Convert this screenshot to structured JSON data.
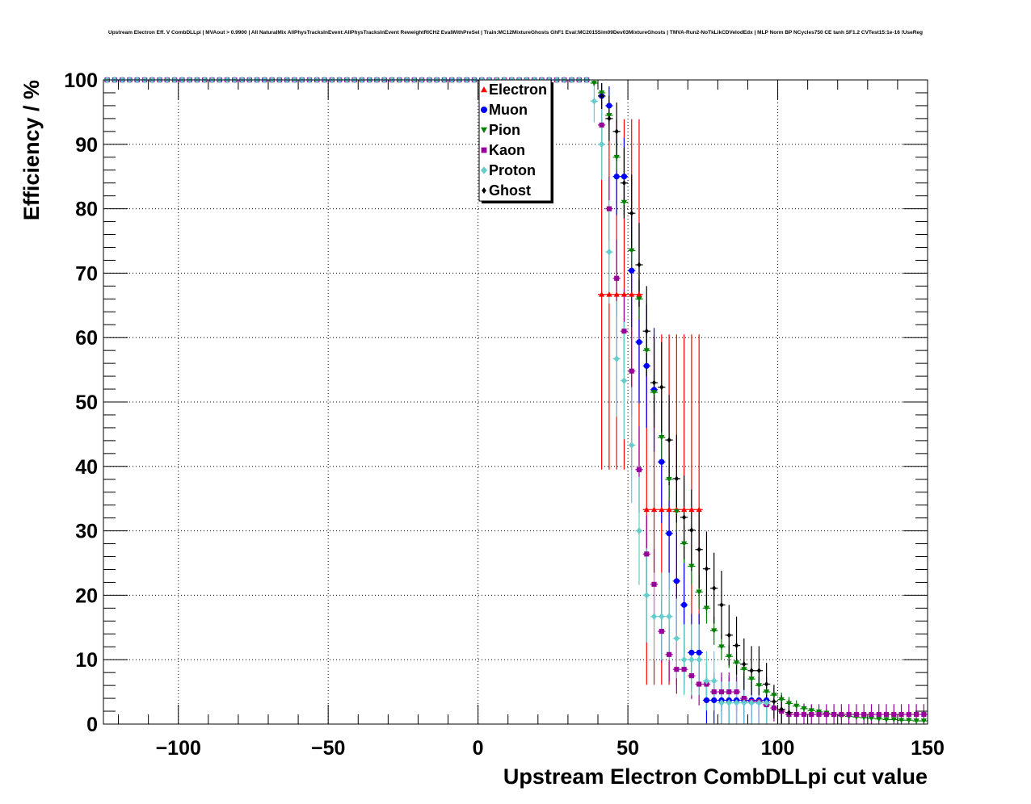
{
  "chart_data": {
    "type": "scatter",
    "title": "Upstream Electron Eff. V CombDLLpi | MVAout > 0.9900 | All NaturalMix AllPhysTracksInEvent:AllPhysTracksInEvent ReweightRICH2 EvalWithPreSel | Train:MC12MixtureGhosts GhF1 Eval:MC2015Sim09Dev03MixtureGhosts | TMVA-Run2-NoTkLikCDVelodEdx | MLP Norm BP NCycles750 CE tanh SF1.2 CVTest15:1e-16 !UseReg",
    "xlabel": "Upstream Electron CombDLLpi cut value",
    "ylabel": "Efficiency / %",
    "xlim": [
      -125,
      150
    ],
    "ylim": [
      0,
      100
    ],
    "xticks": [
      -100,
      -50,
      0,
      50,
      100,
      150
    ],
    "xtick_labels": [
      "−100",
      "−50",
      "0",
      "50",
      "100",
      "150"
    ],
    "yticks": [
      0,
      10,
      20,
      30,
      40,
      50,
      60,
      70,
      80,
      90,
      100
    ],
    "ytick_labels": [
      "0",
      "10",
      "20",
      "30",
      "40",
      "50",
      "60",
      "70",
      "80",
      "90",
      "100"
    ],
    "grid": true,
    "legend_position": "top-center",
    "series": [
      {
        "name": "Electron",
        "color": "#ff0000",
        "marker": "triangle-up",
        "x": [
          40,
          42.5,
          45,
          47.5,
          50,
          52.5,
          55,
          57.5,
          60,
          62.5,
          65,
          67.5,
          70,
          72.5
        ],
        "y": [
          66.7,
          66.7,
          66.7,
          66.7,
          66.7,
          66.7,
          33.3,
          33.3,
          33.3,
          33.3,
          33.3,
          33.3,
          33.3,
          33.3
        ],
        "err": [
          27.2,
          27.2,
          27.2,
          27.2,
          27.2,
          27.2,
          27.2,
          27.2,
          27.2,
          27.2,
          27.2,
          27.2,
          27.2,
          27.2
        ]
      },
      {
        "name": "Muon",
        "color": "#0000ff",
        "marker": "circle",
        "x": [
          40,
          42.5,
          45,
          47.5,
          50,
          52.5,
          55,
          57.5,
          60,
          62.5,
          65,
          67.5,
          70,
          72.5,
          75,
          77.5,
          80,
          82.5,
          85,
          87.5,
          90,
          92.5,
          95
        ],
        "y": [
          97.5,
          96,
          85,
          85,
          70.4,
          59.3,
          55.6,
          51.9,
          40.7,
          29.6,
          22.2,
          18.5,
          11.1,
          11.1,
          3.7,
          3.7,
          3.7,
          3.7,
          3.7,
          3.7,
          3.7,
          3.7,
          3.7
        ],
        "err": [
          2,
          3,
          6,
          6,
          8.8,
          9.5,
          9.6,
          9.6,
          9.5,
          8.8,
          8,
          7.5,
          6,
          6,
          3.6,
          3.6,
          3.6,
          3.6,
          3.6,
          3.6,
          3.6,
          3.6,
          3.6
        ]
      },
      {
        "name": "Pion",
        "color": "#008000",
        "marker": "triangle-down",
        "x": [
          37.5,
          40,
          42.5,
          45,
          47.5,
          50,
          52.5,
          55,
          57.5,
          60,
          62.5,
          65,
          67.5,
          70,
          72.5,
          75,
          77.5,
          80,
          82.5,
          85,
          87.5,
          90,
          92.5,
          95,
          97.5,
          100,
          102.5,
          105,
          107.5,
          110,
          112.5,
          115,
          117.5,
          120,
          122.5,
          125,
          127.5,
          130,
          132.5,
          135,
          137.5,
          140,
          142.5,
          145,
          147.5
        ],
        "y": [
          99.5,
          98,
          94.5,
          88,
          81,
          73.5,
          66,
          58,
          51.5,
          44.5,
          38,
          33,
          28,
          24.5,
          20.5,
          18,
          14.5,
          12,
          10.5,
          9.5,
          8.5,
          7,
          6,
          5,
          4.5,
          3.8,
          3.2,
          2.8,
          2.4,
          2.1,
          1.9,
          1.7,
          1.5,
          1.3,
          1.2,
          1.1,
          1.0,
          0.9,
          0.8,
          0.7,
          0.7,
          0.6,
          0.6,
          0.5,
          0.5
        ],
        "err": [
          0.5,
          1,
          1.5,
          2,
          2.5,
          3,
          3.2,
          3.3,
          3.4,
          3.4,
          3.3,
          3.2,
          3,
          2.8,
          2.6,
          2.4,
          2.2,
          2,
          1.8,
          1.7,
          1.6,
          1.5,
          1.4,
          1.3,
          1.2,
          1.1,
          1,
          0.9,
          0.8,
          0.8,
          0.7,
          0.7,
          0.6,
          0.6,
          0.5,
          0.5,
          0.5,
          0.4,
          0.4,
          0.4,
          0.4,
          0.3,
          0.3,
          0.3,
          0.3
        ]
      },
      {
        "name": "Kaon",
        "color": "#990099",
        "marker": "square",
        "x": [
          40,
          42.5,
          45,
          47.5,
          50,
          52.5,
          55,
          57.5,
          60,
          62.5,
          65,
          67.5,
          70,
          72.5,
          75,
          77.5,
          80,
          82.5,
          85,
          87.5,
          90,
          92.5,
          95,
          97.5,
          100,
          102.5,
          105,
          107.5,
          110,
          112.5,
          115,
          117.5,
          120,
          122.5,
          125,
          127.5,
          130,
          132.5,
          135,
          137.5,
          140,
          142.5,
          145,
          147.5
        ],
        "y": [
          93,
          80,
          69.2,
          61,
          54.8,
          39.5,
          26.4,
          21.7,
          14.4,
          10.8,
          8.5,
          8.5,
          7.5,
          6.2,
          6.2,
          5,
          5,
          5,
          5,
          4,
          3.5,
          3.5,
          3,
          2.5,
          2,
          1.5,
          1.5,
          1.5,
          1.5,
          1.5,
          1.5,
          1.5,
          1.5,
          1.5,
          1.5,
          1.5,
          1.5,
          1.5,
          1.5,
          1.5,
          1.5,
          1.5,
          1.5,
          1.5
        ],
        "err": [
          3.5,
          5,
          6,
          6.5,
          6.8,
          6.7,
          6,
          5.5,
          4.8,
          4.2,
          3.8,
          3.8,
          3.6,
          3.3,
          3.3,
          3,
          3,
          3,
          3,
          2.7,
          2.5,
          2.5,
          2.3,
          2.1,
          1.9,
          1.6,
          1.6,
          1.6,
          1.6,
          1.6,
          1.6,
          1.6,
          1.6,
          1.6,
          1.6,
          1.6,
          1.6,
          1.6,
          1.6,
          1.6,
          1.6,
          1.6,
          1.6,
          1.6
        ]
      },
      {
        "name": "Proton",
        "color": "#66cccc",
        "marker": "diamond",
        "x": [
          37.5,
          40,
          42.5,
          45,
          47.5,
          50,
          52.5,
          55,
          57.5,
          60,
          62.5,
          65,
          67.5,
          70,
          72.5,
          75,
          77.5,
          80,
          82.5,
          85,
          87.5,
          90,
          92.5,
          95
        ],
        "y": [
          96.7,
          90,
          73.3,
          56.7,
          53.3,
          43.3,
          30,
          20,
          16.7,
          16.7,
          16.7,
          13.3,
          10,
          10,
          10,
          6.7,
          6.7,
          3.3,
          3.3,
          3.3,
          3.3,
          3.3,
          3.3,
          3.3
        ],
        "err": [
          3.3,
          5.5,
          8,
          9,
          9.1,
          9,
          8.4,
          7.3,
          6.8,
          6.8,
          6.8,
          6.2,
          5.5,
          5.5,
          5.5,
          4.6,
          4.6,
          3.3,
          3.3,
          3.3,
          3.3,
          3.3,
          3.3,
          3.3
        ]
      },
      {
        "name": "Ghost",
        "color": "#000000",
        "marker": "plus",
        "x": [
          40,
          42.5,
          45,
          47.5,
          50,
          52.5,
          55,
          57.5,
          60,
          62.5,
          65,
          67.5,
          70,
          72.5,
          75,
          77.5,
          80,
          82.5,
          85,
          87.5,
          90,
          92.5,
          95,
          97.5,
          100,
          102.5
        ],
        "y": [
          97.5,
          94,
          92,
          84,
          79.3,
          71.3,
          61,
          53,
          52.3,
          44.1,
          38.1,
          32.1,
          30.1,
          27.1,
          24.1,
          21.1,
          18.5,
          13.8,
          12.2,
          9.3,
          8.3,
          8.3,
          6.2,
          3.5,
          2.3,
          1.8
        ],
        "err": [
          2,
          3.5,
          4.5,
          5.5,
          6,
          6.5,
          7,
          7,
          7,
          7,
          6.8,
          6.5,
          6.3,
          6,
          5.8,
          5.5,
          5.3,
          4.7,
          4.5,
          4,
          3.8,
          3.8,
          3.3,
          2.6,
          2.2,
          2
        ]
      }
    ]
  }
}
